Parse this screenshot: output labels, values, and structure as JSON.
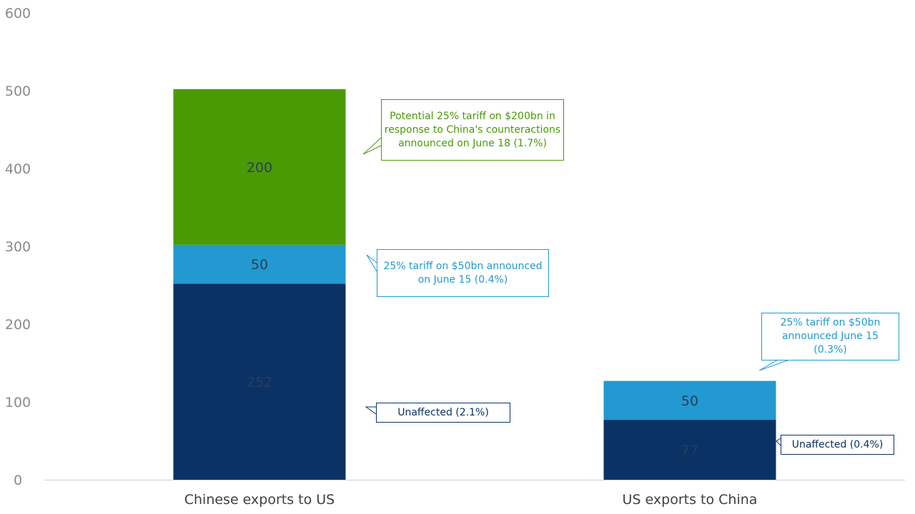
{
  "chart_data": {
    "type": "bar",
    "stacked": true,
    "categories": [
      "Chinese exports to US",
      "US exports to China"
    ],
    "ylim": [
      0,
      600
    ],
    "yticks": [
      0,
      100,
      200,
      300,
      400,
      500,
      600
    ],
    "grid": false,
    "series": [
      {
        "values": [
          252,
          77
        ],
        "color": "#0b3265",
        "label_color": "#2a3e5a"
      },
      {
        "values": [
          50,
          50
        ],
        "color": "#2299d0",
        "label_color": "#2a3e5a"
      },
      {
        "values": [
          200,
          0
        ],
        "color": "#4a9a06",
        "label_color": "#2a3e5a"
      }
    ],
    "annotations": [
      {
        "text": "Potential 25% tariff on $200bn in response to China's counteractions announced on June 18 (1.7%)",
        "color": "#4a9a06"
      },
      {
        "text": "25% tariff on $50bn announced on June 15 (0.4%)",
        "color": "#2299d0"
      },
      {
        "text": "Unaffected (2.1%)",
        "color": "#0b3265"
      },
      {
        "text": "25% tariff on $50bn announced June 15 (0.3%)",
        "color": "#2299d0"
      },
      {
        "text": "Unaffected (0.4%)",
        "color": "#0b3265"
      }
    ]
  }
}
